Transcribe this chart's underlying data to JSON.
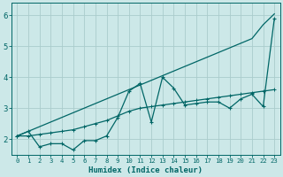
{
  "title": "",
  "xlabel": "Humidex (Indice chaleur)",
  "ylabel": "",
  "bg_color": "#cce8e8",
  "grid_color": "#aacccc",
  "line_color": "#006666",
  "xlim": [
    -0.5,
    23.5
  ],
  "ylim": [
    1.5,
    6.4
  ],
  "xticks": [
    0,
    1,
    2,
    3,
    4,
    5,
    6,
    7,
    8,
    9,
    10,
    11,
    12,
    13,
    14,
    15,
    16,
    17,
    18,
    19,
    20,
    21,
    22,
    23
  ],
  "yticks": [
    2,
    3,
    4,
    5,
    6
  ],
  "x": [
    0,
    1,
    2,
    3,
    4,
    5,
    6,
    7,
    8,
    9,
    10,
    11,
    12,
    13,
    14,
    15,
    16,
    17,
    18,
    19,
    20,
    21,
    22,
    23
  ],
  "line_jagged": [
    2.1,
    2.25,
    1.75,
    1.85,
    1.85,
    1.65,
    1.95,
    1.95,
    2.1,
    2.7,
    3.55,
    3.8,
    2.55,
    4.0,
    3.65,
    3.1,
    3.15,
    3.2,
    3.2,
    3.0,
    3.3,
    3.45,
    3.05,
    5.9
  ],
  "line_smooth": [
    2.1,
    2.1,
    2.15,
    2.2,
    2.25,
    2.3,
    2.4,
    2.5,
    2.6,
    2.75,
    2.9,
    3.0,
    3.05,
    3.1,
    3.15,
    3.2,
    3.25,
    3.3,
    3.35,
    3.4,
    3.45,
    3.5,
    3.55,
    3.6
  ],
  "line_straight": [
    2.1,
    2.25,
    2.4,
    2.55,
    2.7,
    2.85,
    3.0,
    3.15,
    3.3,
    3.45,
    3.6,
    3.75,
    3.9,
    4.05,
    4.2,
    4.35,
    4.5,
    4.65,
    4.8,
    4.95,
    5.1,
    5.25,
    5.7,
    6.05
  ]
}
